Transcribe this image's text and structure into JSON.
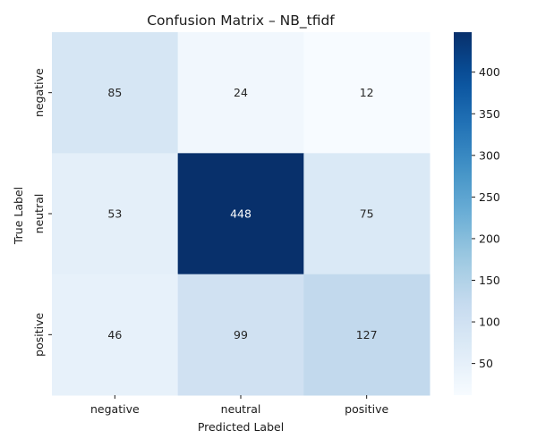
{
  "chart_data": {
    "type": "heatmap",
    "title": "Confusion Matrix – NB_tfidf",
    "xlabel": "Predicted Label",
    "ylabel": "True Label",
    "x_categories": [
      "negative",
      "neutral",
      "positive"
    ],
    "y_categories": [
      "negative",
      "neutral",
      "positive"
    ],
    "values": [
      [
        85,
        24,
        12
      ],
      [
        53,
        448,
        75
      ],
      [
        46,
        99,
        127
      ]
    ],
    "colormap": "Blues",
    "color_range": [
      12,
      448
    ],
    "colorbar_ticks": [
      50,
      100,
      150,
      200,
      250,
      300,
      350,
      400
    ],
    "colors": {
      "low": "#f7fbff",
      "high": "#08306b"
    }
  }
}
